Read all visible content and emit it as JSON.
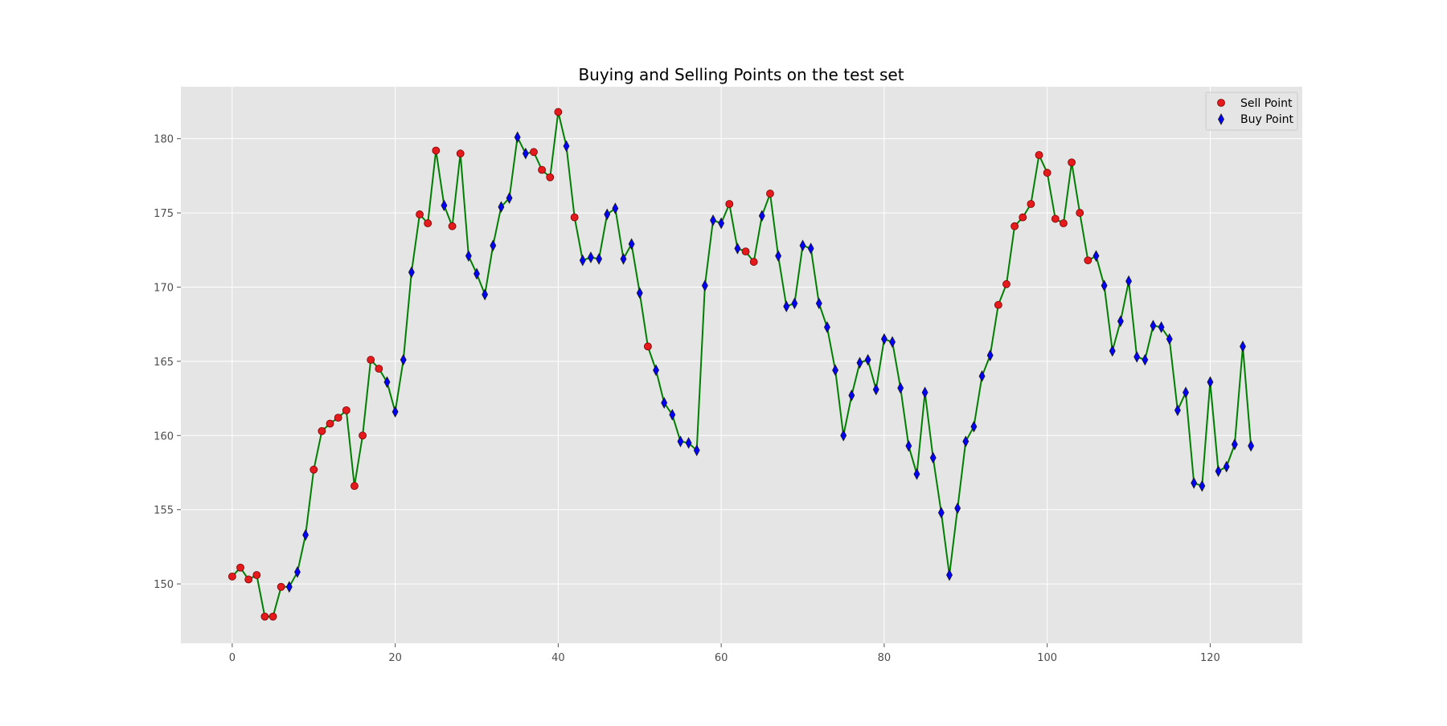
{
  "chart_data": {
    "type": "line",
    "title": "Buying and Selling Points on the test set",
    "xlabel": "",
    "ylabel": "",
    "xlim": [
      -6.3,
      131.3
    ],
    "ylim": [
      146.0,
      183.5
    ],
    "xticks": [
      0,
      20,
      40,
      60,
      80,
      100,
      120
    ],
    "yticks": [
      150,
      155,
      160,
      165,
      170,
      175,
      180
    ],
    "grid": true,
    "legend_position": "top-right",
    "colors": {
      "background": "#e5e5e5",
      "grid": "#ffffff",
      "line": "#008000",
      "sell": "#e41a1c",
      "sell_edge": "#7a0000",
      "buy": "#0000ff",
      "buy_edge": "#1a1a1a"
    },
    "price": [
      150.5,
      151.1,
      150.3,
      150.6,
      147.8,
      147.8,
      149.8,
      149.8,
      150.8,
      153.3,
      157.7,
      160.3,
      160.8,
      161.2,
      161.7,
      156.6,
      160.0,
      165.1,
      164.5,
      163.6,
      161.6,
      165.1,
      171.0,
      174.9,
      174.3,
      179.2,
      175.5,
      174.1,
      179.0,
      172.1,
      170.9,
      169.5,
      172.8,
      175.4,
      176.0,
      180.1,
      179.0,
      179.1,
      177.9,
      177.4,
      181.8,
      179.5,
      174.7,
      171.8,
      172.0,
      171.9,
      174.9,
      175.3,
      171.9,
      172.9,
      169.6,
      166.0,
      164.4,
      162.2,
      161.4,
      159.6,
      159.5,
      159.0,
      170.1,
      174.5,
      174.3,
      175.6,
      172.6,
      172.4,
      171.7,
      174.8,
      176.3,
      172.1,
      168.7,
      168.9,
      172.8,
      172.6,
      168.9,
      167.3,
      164.4,
      160.0,
      162.7,
      164.9,
      165.1,
      163.1,
      166.5,
      166.3,
      163.2,
      159.3,
      157.4,
      162.9,
      158.5,
      154.8,
      150.6,
      155.1,
      159.6,
      160.6,
      164.0,
      165.4,
      168.8,
      170.2,
      174.1,
      174.7,
      175.6,
      178.9,
      177.7,
      174.6,
      174.3,
      178.4,
      175.0,
      171.8,
      172.1,
      170.1,
      165.7,
      167.7,
      170.4,
      165.3,
      165.1,
      167.4,
      167.3,
      166.5,
      161.7,
      162.9,
      156.8,
      156.6,
      163.6,
      157.6,
      157.9,
      159.4,
      166.0,
      159.3
    ],
    "series": [
      {
        "name": "Sell Point",
        "marker": "circle",
        "x": [
          0,
          1,
          2,
          3,
          4,
          5,
          6,
          10,
          11,
          12,
          13,
          14,
          15,
          16,
          17,
          18,
          23,
          24,
          25,
          27,
          28,
          37,
          38,
          39,
          40,
          42,
          51,
          61,
          63,
          64,
          66,
          94,
          95,
          96,
          97,
          98,
          99,
          100,
          101,
          102,
          103,
          104,
          105
        ],
        "y": [
          150.5,
          151.1,
          150.3,
          150.6,
          147.8,
          147.8,
          149.8,
          157.7,
          160.3,
          160.8,
          161.2,
          161.7,
          156.6,
          160.0,
          165.1,
          164.5,
          174.9,
          174.3,
          179.2,
          174.1,
          179.0,
          179.1,
          177.9,
          177.4,
          181.8,
          174.7,
          166.0,
          175.6,
          172.4,
          171.7,
          176.3,
          168.8,
          170.2,
          174.1,
          174.7,
          175.6,
          178.9,
          177.7,
          174.6,
          174.3,
          178.4,
          175.0,
          171.8
        ]
      },
      {
        "name": "Buy Point",
        "marker": "thin_diamond",
        "x": [
          7,
          8,
          9,
          19,
          20,
          21,
          22,
          26,
          29,
          30,
          31,
          32,
          33,
          34,
          35,
          36,
          41,
          43,
          44,
          45,
          46,
          47,
          48,
          49,
          50,
          52,
          53,
          54,
          55,
          56,
          57,
          58,
          59,
          60,
          62,
          65,
          67,
          68,
          69,
          70,
          71,
          72,
          73,
          74,
          75,
          76,
          77,
          78,
          79,
          80,
          81,
          82,
          83,
          84,
          85,
          86,
          87,
          88,
          89,
          90,
          91,
          92,
          93,
          106,
          107,
          108,
          109,
          110,
          111,
          112,
          113,
          114,
          115,
          116,
          117,
          118,
          119,
          120,
          121,
          122,
          123,
          124,
          125
        ],
        "y": [
          149.8,
          150.8,
          153.3,
          163.6,
          161.6,
          165.1,
          171.0,
          175.5,
          172.1,
          170.9,
          169.5,
          172.8,
          175.4,
          176.0,
          180.1,
          179.0,
          179.5,
          171.8,
          172.0,
          171.9,
          174.9,
          175.3,
          171.9,
          172.9,
          169.6,
          164.4,
          162.2,
          161.4,
          159.6,
          159.5,
          159.0,
          170.1,
          174.5,
          174.3,
          172.6,
          174.8,
          172.1,
          168.7,
          168.9,
          172.8,
          172.6,
          168.9,
          167.3,
          164.4,
          160.0,
          162.7,
          164.9,
          165.1,
          163.1,
          166.5,
          166.3,
          163.2,
          159.3,
          157.4,
          162.9,
          158.5,
          154.8,
          150.6,
          155.1,
          159.6,
          160.6,
          164.0,
          165.4,
          172.1,
          170.1,
          165.7,
          167.7,
          170.4,
          165.3,
          165.1,
          167.4,
          167.3,
          166.5,
          161.7,
          162.9,
          156.8,
          156.6,
          163.6,
          157.6,
          157.9,
          159.4,
          166.0,
          159.3
        ]
      }
    ]
  }
}
